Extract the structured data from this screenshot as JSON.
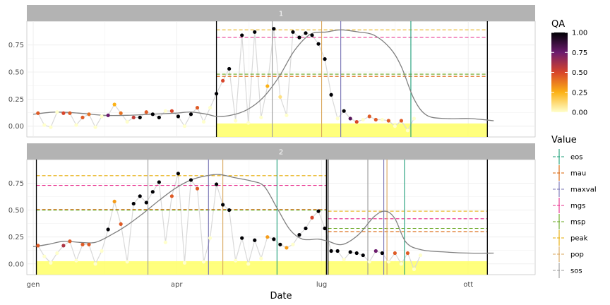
{
  "chart_data": {
    "type": "line",
    "xlabel": "Date",
    "ylabel": "",
    "x_ticks": [
      {
        "label": "gen",
        "doy": 1
      },
      {
        "label": "apr",
        "doy": 91
      },
      {
        "label": "lug",
        "doy": 182
      },
      {
        "label": "ott",
        "doy": 274
      }
    ],
    "x_range": [
      -3,
      316
    ],
    "y_ticks": [
      "0.00",
      "0.25",
      "0.50",
      "0.75"
    ],
    "y_ticks_values": [
      0,
      0.25,
      0.5,
      0.75
    ],
    "y_range": [
      -0.1,
      0.97
    ],
    "colors": {
      "strip": "#b3b3b3",
      "grid": "#ebebeb",
      "raw_line": "#d9d9d9",
      "smooth_line": "#808080",
      "season_fill": "#ffff66",
      "season_border": "#000000"
    },
    "qa_legend": {
      "title": "QA",
      "ticks": [
        "0.00",
        "0.25",
        "0.50",
        "0.75",
        "1.00"
      ],
      "tick_values": [
        0,
        0.25,
        0.5,
        0.75,
        1.0
      ],
      "gradient": [
        "#ffffcc",
        "#fcb216",
        "#d8452a",
        "#6c1c6e",
        "#000004"
      ]
    },
    "value_legend": {
      "title": "Value",
      "items": [
        {
          "label": "eos",
          "color": "#1b9e77",
          "dashed": false
        },
        {
          "label": "mau",
          "color": "#d95f02",
          "dashed": true
        },
        {
          "label": "maxval",
          "color": "#7570b3",
          "dashed": false
        },
        {
          "label": "mgs",
          "color": "#e7298a",
          "dashed": true
        },
        {
          "label": "msp",
          "color": "#66a61e",
          "dashed": true
        },
        {
          "label": "peak",
          "color": "#e6ab02",
          "dashed": true
        },
        {
          "label": "pop",
          "color": "#d9a55a",
          "dashed": false
        },
        {
          "label": "sos",
          "color": "#999999",
          "dashed": false
        }
      ]
    },
    "panels": [
      {
        "name": "1",
        "seasons": [
          {
            "start": 116,
            "end": 286
          }
        ],
        "vlines": [
          {
            "type": "sos",
            "x": 151
          },
          {
            "type": "pop",
            "x": 182
          },
          {
            "type": "maxval",
            "x": 194
          },
          {
            "type": "eos",
            "x": 238
          }
        ],
        "hlines": [
          {
            "type": "peak",
            "x0": 116,
            "x1": 286,
            "y": 0.89
          },
          {
            "type": "mgs",
            "x0": 116,
            "x1": 286,
            "y": 0.82
          },
          {
            "type": "msp",
            "x0": 116,
            "x1": 286,
            "y": 0.48
          },
          {
            "type": "mau",
            "x0": 116,
            "x1": 286,
            "y": 0.46
          }
        ],
        "smooth": [
          [
            1,
            0.11
          ],
          [
            15,
            0.13
          ],
          [
            30,
            0.12
          ],
          [
            45,
            0.1
          ],
          [
            60,
            0.1
          ],
          [
            75,
            0.11
          ],
          [
            90,
            0.12
          ],
          [
            100,
            0.13
          ],
          [
            110,
            0.11
          ],
          [
            116,
            0.09
          ],
          [
            125,
            0.1
          ],
          [
            135,
            0.15
          ],
          [
            145,
            0.26
          ],
          [
            155,
            0.45
          ],
          [
            165,
            0.7
          ],
          [
            175,
            0.85
          ],
          [
            185,
            0.87
          ],
          [
            194,
            0.89
          ],
          [
            205,
            0.87
          ],
          [
            215,
            0.84
          ],
          [
            225,
            0.72
          ],
          [
            232,
            0.55
          ],
          [
            240,
            0.25
          ],
          [
            248,
            0.1
          ],
          [
            260,
            0.07
          ],
          [
            275,
            0.07
          ],
          [
            290,
            0.05
          ]
        ],
        "points": [
          {
            "x": 4,
            "y": 0.12,
            "qa": 0.45
          },
          {
            "x": 8,
            "y": 0.01,
            "qa": 0
          },
          {
            "x": 12,
            "y": -0.01,
            "qa": 0
          },
          {
            "x": 16,
            "y": 0.13,
            "qa": 0
          },
          {
            "x": 20,
            "y": 0.12,
            "qa": 0.5
          },
          {
            "x": 24,
            "y": 0.12,
            "qa": 0.45
          },
          {
            "x": 28,
            "y": 0.01,
            "qa": 0
          },
          {
            "x": 32,
            "y": 0.08,
            "qa": 0.45
          },
          {
            "x": 36,
            "y": 0.11,
            "qa": 0.4
          },
          {
            "x": 40,
            "y": -0.01,
            "qa": 0
          },
          {
            "x": 44,
            "y": 0.09,
            "qa": 0
          },
          {
            "x": 48,
            "y": 0.1,
            "qa": 0.75
          },
          {
            "x": 52,
            "y": 0.2,
            "qa": 0.25
          },
          {
            "x": 56,
            "y": 0.12,
            "qa": 0.4
          },
          {
            "x": 60,
            "y": 0.04,
            "qa": 0
          },
          {
            "x": 64,
            "y": 0.08,
            "qa": 0.55
          },
          {
            "x": 68,
            "y": 0.08,
            "qa": 1
          },
          {
            "x": 72,
            "y": 0.13,
            "qa": 0.45
          },
          {
            "x": 76,
            "y": 0.11,
            "qa": 1
          },
          {
            "x": 80,
            "y": 0.08,
            "qa": 1
          },
          {
            "x": 84,
            "y": 0.14,
            "qa": 0
          },
          {
            "x": 88,
            "y": 0.14,
            "qa": 0.5
          },
          {
            "x": 92,
            "y": 0.09,
            "qa": 1
          },
          {
            "x": 96,
            "y": 0.0,
            "qa": 0
          },
          {
            "x": 100,
            "y": 0.11,
            "qa": 1
          },
          {
            "x": 104,
            "y": 0.17,
            "qa": 0.45
          },
          {
            "x": 108,
            "y": 0.04,
            "qa": 0
          },
          {
            "x": 112,
            "y": 0.17,
            "qa": 0
          },
          {
            "x": 116,
            "y": 0.3,
            "qa": 1
          },
          {
            "x": 120,
            "y": 0.42,
            "qa": 0.5
          },
          {
            "x": 124,
            "y": 0.53,
            "qa": 1
          },
          {
            "x": 128,
            "y": 0.05,
            "qa": 0
          },
          {
            "x": 132,
            "y": 0.84,
            "qa": 1
          },
          {
            "x": 136,
            "y": 0.03,
            "qa": 0
          },
          {
            "x": 140,
            "y": 0.87,
            "qa": 1
          },
          {
            "x": 144,
            "y": 0.08,
            "qa": 0
          },
          {
            "x": 148,
            "y": 0.37,
            "qa": 0.25
          },
          {
            "x": 152,
            "y": 0.9,
            "qa": 1
          },
          {
            "x": 156,
            "y": 0.27,
            "qa": 0.1
          },
          {
            "x": 160,
            "y": 0.1,
            "qa": 0
          },
          {
            "x": 164,
            "y": 0.87,
            "qa": 1
          },
          {
            "x": 168,
            "y": 0.82,
            "qa": 1
          },
          {
            "x": 172,
            "y": 0.86,
            "qa": 1
          },
          {
            "x": 176,
            "y": 0.84,
            "qa": 1
          },
          {
            "x": 180,
            "y": 0.76,
            "qa": 1
          },
          {
            "x": 184,
            "y": 0.62,
            "qa": 1
          },
          {
            "x": 188,
            "y": 0.29,
            "qa": 1
          },
          {
            "x": 192,
            "y": 0.07,
            "qa": 0
          },
          {
            "x": 196,
            "y": 0.14,
            "qa": 1
          },
          {
            "x": 200,
            "y": 0.07,
            "qa": 0.8
          },
          {
            "x": 204,
            "y": 0.04,
            "qa": 0.5
          },
          {
            "x": 208,
            "y": 0.06,
            "qa": 0
          },
          {
            "x": 212,
            "y": 0.09,
            "qa": 0.45
          },
          {
            "x": 216,
            "y": 0.06,
            "qa": 0.45
          },
          {
            "x": 220,
            "y": 0.06,
            "qa": 0
          },
          {
            "x": 224,
            "y": 0.05,
            "qa": 0.45
          },
          {
            "x": 228,
            "y": 0.0,
            "qa": 0
          },
          {
            "x": 232,
            "y": 0.05,
            "qa": 0.45
          },
          {
            "x": 236,
            "y": -0.04,
            "qa": 0
          },
          {
            "x": 240,
            "y": 0.07,
            "qa": 0
          }
        ]
      },
      {
        "name": "2",
        "seasons": [
          {
            "start": 3,
            "end": 185
          },
          {
            "start": 186,
            "end": 286
          }
        ],
        "vlines": [
          {
            "type": "sos",
            "x": 73
          },
          {
            "type": "maxval",
            "x": 111
          },
          {
            "type": "pop",
            "x": 120
          },
          {
            "type": "eos",
            "x": 154
          },
          {
            "type": "sos",
            "x": 211
          },
          {
            "type": "maxval",
            "x": 221
          },
          {
            "type": "pop",
            "x": 223
          },
          {
            "type": "eos",
            "x": 234
          }
        ],
        "hlines": [
          {
            "type": "peak",
            "x0": 3,
            "x1": 185,
            "y": 0.82
          },
          {
            "type": "mgs",
            "x0": 3,
            "x1": 185,
            "y": 0.73
          },
          {
            "type": "mau",
            "x0": 3,
            "x1": 185,
            "y": 0.505
          },
          {
            "type": "msp",
            "x0": 3,
            "x1": 185,
            "y": 0.5
          },
          {
            "type": "peak",
            "x0": 186,
            "x1": 286,
            "y": 0.49
          },
          {
            "type": "mgs",
            "x0": 186,
            "x1": 286,
            "y": 0.42
          },
          {
            "type": "msp",
            "x0": 186,
            "x1": 286,
            "y": 0.33
          },
          {
            "type": "mau",
            "x0": 186,
            "x1": 286,
            "y": 0.3
          }
        ],
        "smooth": [
          [
            1,
            0.16
          ],
          [
            10,
            0.18
          ],
          [
            20,
            0.21
          ],
          [
            30,
            0.2
          ],
          [
            40,
            0.2
          ],
          [
            50,
            0.27
          ],
          [
            60,
            0.36
          ],
          [
            70,
            0.47
          ],
          [
            80,
            0.59
          ],
          [
            90,
            0.7
          ],
          [
            100,
            0.78
          ],
          [
            110,
            0.82
          ],
          [
            118,
            0.83
          ],
          [
            128,
            0.8
          ],
          [
            138,
            0.77
          ],
          [
            146,
            0.72
          ],
          [
            154,
            0.52
          ],
          [
            162,
            0.32
          ],
          [
            170,
            0.23
          ],
          [
            180,
            0.23
          ],
          [
            186,
            0.21
          ],
          [
            195,
            0.18
          ],
          [
            205,
            0.27
          ],
          [
            215,
            0.44
          ],
          [
            222,
            0.49
          ],
          [
            228,
            0.42
          ],
          [
            235,
            0.2
          ],
          [
            245,
            0.13
          ],
          [
            260,
            0.11
          ],
          [
            275,
            0.1
          ],
          [
            290,
            0.1
          ]
        ],
        "points": [
          {
            "x": 4,
            "y": 0.17,
            "qa": 0.45
          },
          {
            "x": 8,
            "y": 0.07,
            "qa": 0
          },
          {
            "x": 12,
            "y": 0.01,
            "qa": 0
          },
          {
            "x": 16,
            "y": 0.1,
            "qa": 0
          },
          {
            "x": 20,
            "y": 0.17,
            "qa": 0.6
          },
          {
            "x": 24,
            "y": 0.21,
            "qa": 0.45
          },
          {
            "x": 28,
            "y": 0.03,
            "qa": 0
          },
          {
            "x": 32,
            "y": 0.18,
            "qa": 0.45
          },
          {
            "x": 36,
            "y": 0.18,
            "qa": 0.45
          },
          {
            "x": 40,
            "y": 0.0,
            "qa": 0
          },
          {
            "x": 44,
            "y": 0.12,
            "qa": 0
          },
          {
            "x": 48,
            "y": 0.32,
            "qa": 1
          },
          {
            "x": 52,
            "y": 0.58,
            "qa": 0.3
          },
          {
            "x": 56,
            "y": 0.37,
            "qa": 0.45
          },
          {
            "x": 60,
            "y": 0.02,
            "qa": 0
          },
          {
            "x": 64,
            "y": 0.56,
            "qa": 1
          },
          {
            "x": 68,
            "y": 0.63,
            "qa": 1
          },
          {
            "x": 72,
            "y": 0.57,
            "qa": 1
          },
          {
            "x": 76,
            "y": 0.67,
            "qa": 1
          },
          {
            "x": 80,
            "y": 0.76,
            "qa": 1
          },
          {
            "x": 84,
            "y": 0.2,
            "qa": 0
          },
          {
            "x": 88,
            "y": 0.63,
            "qa": 0.45
          },
          {
            "x": 92,
            "y": 0.84,
            "qa": 1
          },
          {
            "x": 96,
            "y": 0.01,
            "qa": 0
          },
          {
            "x": 100,
            "y": 0.78,
            "qa": 1
          },
          {
            "x": 104,
            "y": 0.7,
            "qa": 0.45
          },
          {
            "x": 108,
            "y": 0.02,
            "qa": 0
          },
          {
            "x": 112,
            "y": 0.24,
            "qa": 0
          },
          {
            "x": 116,
            "y": 0.74,
            "qa": 1
          },
          {
            "x": 120,
            "y": 0.55,
            "qa": 1
          },
          {
            "x": 124,
            "y": 0.5,
            "qa": 1
          },
          {
            "x": 128,
            "y": 0.03,
            "qa": 0
          },
          {
            "x": 132,
            "y": 0.24,
            "qa": 1
          },
          {
            "x": 136,
            "y": 0.0,
            "qa": 0
          },
          {
            "x": 140,
            "y": 0.22,
            "qa": 1
          },
          {
            "x": 144,
            "y": 0.05,
            "qa": 0
          },
          {
            "x": 148,
            "y": 0.25,
            "qa": 0.3
          },
          {
            "x": 152,
            "y": 0.23,
            "qa": 1
          },
          {
            "x": 156,
            "y": 0.18,
            "qa": 1
          },
          {
            "x": 160,
            "y": 0.15,
            "qa": 0.3
          },
          {
            "x": 164,
            "y": 0.18,
            "qa": 0
          },
          {
            "x": 168,
            "y": 0.27,
            "qa": 1
          },
          {
            "x": 172,
            "y": 0.33,
            "qa": 1
          },
          {
            "x": 176,
            "y": 0.43,
            "qa": 0.5
          },
          {
            "x": 180,
            "y": 0.49,
            "qa": 1
          },
          {
            "x": 184,
            "y": 0.33,
            "qa": 1
          },
          {
            "x": 188,
            "y": 0.12,
            "qa": 1
          },
          {
            "x": 192,
            "y": 0.12,
            "qa": 1
          },
          {
            "x": 196,
            "y": 0.04,
            "qa": 0
          },
          {
            "x": 200,
            "y": 0.11,
            "qa": 1
          },
          {
            "x": 204,
            "y": 0.1,
            "qa": 1
          },
          {
            "x": 208,
            "y": 0.08,
            "qa": 1
          },
          {
            "x": 212,
            "y": 0.02,
            "qa": 0
          },
          {
            "x": 216,
            "y": 0.12,
            "qa": 0.75
          },
          {
            "x": 220,
            "y": 0.1,
            "qa": 1
          },
          {
            "x": 224,
            "y": 0.02,
            "qa": 0
          },
          {
            "x": 228,
            "y": 0.1,
            "qa": 0.45
          },
          {
            "x": 232,
            "y": 0.0,
            "qa": 0
          },
          {
            "x": 236,
            "y": 0.1,
            "qa": 0.45
          },
          {
            "x": 240,
            "y": -0.05,
            "qa": 0
          },
          {
            "x": 244,
            "y": 0.08,
            "qa": 0
          }
        ]
      }
    ]
  }
}
